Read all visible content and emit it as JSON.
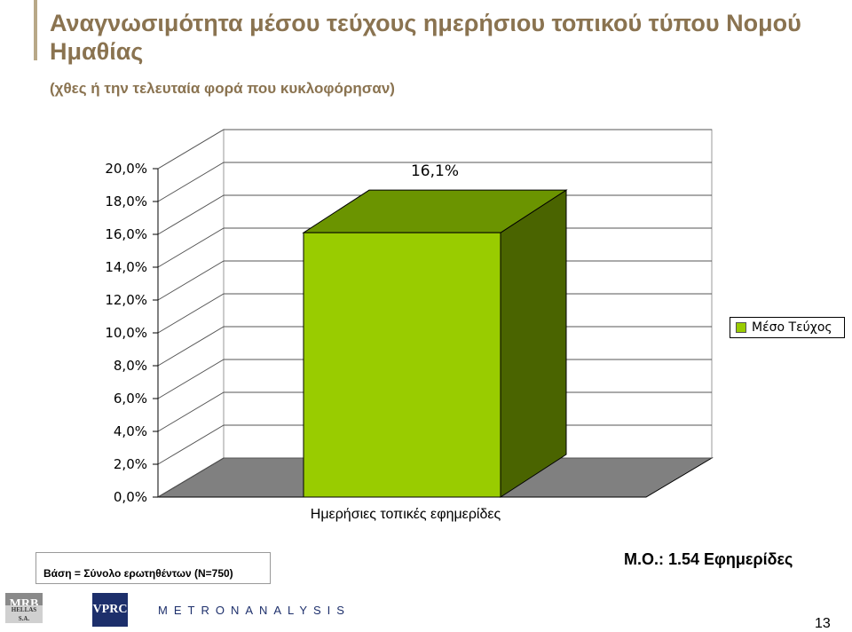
{
  "header": {
    "title": "Αναγνωσιμότητα μέσου τεύχους ημερήσιου τοπικού τύπου Νομού Ημαθίας",
    "subtitle": "(χθες ή την τελευταία φορά που κυκλοφόρησαν)"
  },
  "chart_data": {
    "type": "bar",
    "categories": [
      "Ημερήσιες τοπικές εφημερίδες"
    ],
    "series": [
      {
        "name": "Μέσο Τεύχος",
        "values": [
          16.1
        ],
        "labels": [
          "16,1%"
        ],
        "color": "#99cc00"
      }
    ],
    "ylim": [
      0,
      20
    ],
    "yticks": [
      "0,0%",
      "2,0%",
      "4,0%",
      "6,0%",
      "8,0%",
      "10,0%",
      "12,0%",
      "14,0%",
      "16,0%",
      "18,0%",
      "20,0%"
    ],
    "style": "3d",
    "grid": true,
    "legend_position": "right",
    "floor_color": "#808080"
  },
  "footer": {
    "base_note": "Βάση = Σύνολο ερωτηθέντων (N=750)",
    "mean_note": "Μ.Ο.: 1.54 Εφημερίδες",
    "page_number": "13",
    "logos": {
      "mrb": "MRB",
      "mrb_sub": "HELLAS S.A.",
      "vprc": "VPRC",
      "metron": "METRONANALYSIS"
    }
  }
}
